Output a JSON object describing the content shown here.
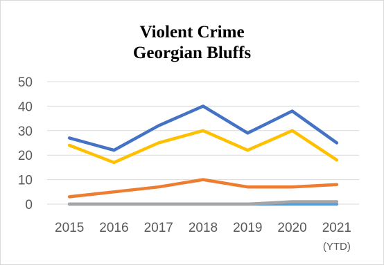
{
  "chart_data": {
    "type": "line",
    "title": [
      "Violent Crime",
      "Georgian Bluffs"
    ],
    "categories": [
      [
        "2015"
      ],
      [
        "2016"
      ],
      [
        "2017"
      ],
      [
        "2018"
      ],
      [
        "2019"
      ],
      [
        "2020"
      ],
      [
        "2021",
        "(YTD)"
      ]
    ],
    "ylim": [
      0,
      50
    ],
    "yticks": [
      0,
      10,
      20,
      30,
      40,
      50
    ],
    "grid": true,
    "legend": "none",
    "series": [
      {
        "color": "#4472C4",
        "values": [
          27,
          22,
          32,
          40,
          29,
          38,
          25
        ]
      },
      {
        "color": "#FFC000",
        "values": [
          24,
          17,
          25,
          30,
          22,
          30,
          18
        ]
      },
      {
        "color": "#ED7D31",
        "values": [
          3,
          5,
          7,
          10,
          7,
          7,
          8
        ]
      },
      {
        "color": "#A5A5A5",
        "values": [
          0,
          0,
          0,
          0,
          0,
          1,
          1
        ]
      },
      {
        "color": "#5B9BD5",
        "values": [
          0,
          0,
          0,
          0,
          0,
          0,
          0
        ]
      }
    ]
  }
}
